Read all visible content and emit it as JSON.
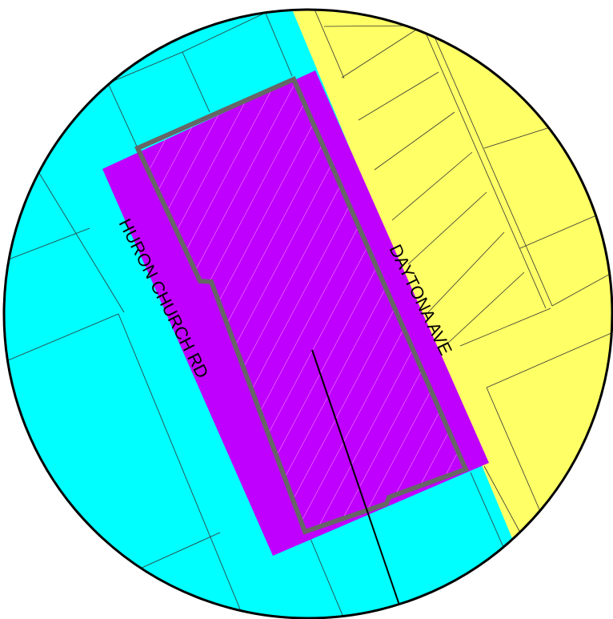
{
  "map": {
    "streets": {
      "west": "HURON CHURCH RD",
      "east": "DAYTONA AVE"
    },
    "zones": [
      {
        "id": "commercial",
        "color": "#00ffff"
      },
      {
        "id": "residential",
        "color": "#ffff66"
      },
      {
        "id": "subject-area",
        "color": "#bf00ff"
      }
    ],
    "colors": {
      "boundary": "#666666",
      "hatch": "#ff99ff",
      "parcel_line": "#333333",
      "leader": "#000000",
      "frame": "#000000"
    }
  }
}
